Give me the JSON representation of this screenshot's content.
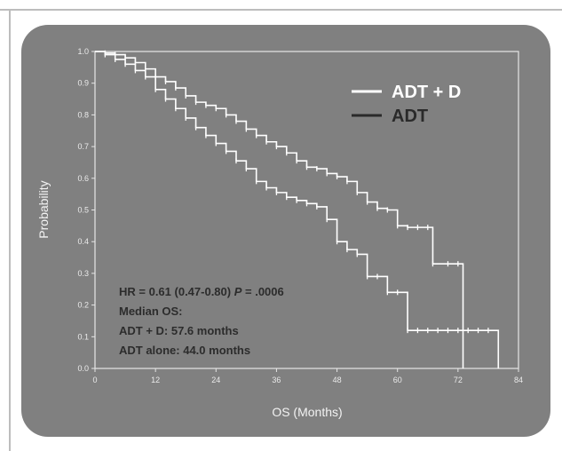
{
  "chart_data": {
    "type": "line",
    "subtype": "kaplan-meier",
    "xlabel": "OS (Months)",
    "ylabel": "Probability",
    "xlim": [
      0,
      84
    ],
    "ylim": [
      0,
      1.0
    ],
    "x_ticks": [
      "0",
      "12",
      "24",
      "36",
      "48",
      "60",
      "72",
      "84"
    ],
    "y_ticks": [
      "0.0",
      "0.1",
      "0.2",
      "0.3",
      "0.4",
      "0.5",
      "0.6",
      "0.7",
      "0.8",
      "0.9",
      "1.0"
    ],
    "legend_position": "top-right",
    "series": [
      {
        "name": "ADT + D",
        "color": "#ffffff",
        "x": [
          0,
          2,
          4,
          6,
          8,
          10,
          12,
          14,
          16,
          18,
          20,
          22,
          24,
          26,
          28,
          30,
          32,
          34,
          36,
          38,
          40,
          42,
          44,
          46,
          48,
          50,
          52,
          54,
          56,
          58,
          60,
          62,
          64,
          66,
          67,
          70,
          72,
          73
        ],
        "y": [
          1.0,
          0.995,
          0.99,
          0.98,
          0.965,
          0.945,
          0.92,
          0.905,
          0.885,
          0.86,
          0.84,
          0.83,
          0.82,
          0.8,
          0.78,
          0.755,
          0.735,
          0.715,
          0.7,
          0.68,
          0.655,
          0.635,
          0.63,
          0.615,
          0.605,
          0.59,
          0.555,
          0.525,
          0.505,
          0.5,
          0.45,
          0.445,
          0.445,
          0.445,
          0.33,
          0.33,
          0.33,
          0.0
        ]
      },
      {
        "name": "ADT",
        "color": "#ffffff",
        "x": [
          0,
          2,
          4,
          6,
          8,
          10,
          12,
          14,
          16,
          18,
          20,
          22,
          24,
          26,
          28,
          30,
          32,
          34,
          36,
          38,
          40,
          42,
          44,
          46,
          48,
          50,
          52,
          54,
          56,
          58,
          60,
          62,
          64,
          66,
          68,
          70,
          72,
          74,
          76,
          78,
          80
        ],
        "y": [
          1.0,
          0.99,
          0.975,
          0.96,
          0.94,
          0.92,
          0.88,
          0.85,
          0.82,
          0.79,
          0.76,
          0.735,
          0.71,
          0.685,
          0.655,
          0.63,
          0.59,
          0.57,
          0.555,
          0.54,
          0.53,
          0.52,
          0.51,
          0.47,
          0.4,
          0.375,
          0.36,
          0.29,
          0.29,
          0.24,
          0.24,
          0.12,
          0.12,
          0.12,
          0.12,
          0.12,
          0.12,
          0.12,
          0.12,
          0.12,
          0.0
        ]
      }
    ],
    "annotations": [
      "HR = 0.61 (0.47-0.80) P = .0006",
      "Median OS:",
      "ADT + D: 57.6 months",
      "ADT alone: 44.0 months"
    ]
  },
  "annotation_parts": {
    "hr_prefix": "HR = 0.61 (0.47-0.80) ",
    "p_label": "P",
    "p_value": " = .0006"
  },
  "legend": [
    {
      "label": "ADT + D",
      "color": "#ffffff"
    },
    {
      "label": "ADT",
      "color": "#2a2a2a"
    }
  ],
  "colors": {
    "panel": "#808080",
    "plot_border": "#e6e6e6",
    "curve": "#ffffff",
    "annotation_text": "#2c2c2c"
  }
}
